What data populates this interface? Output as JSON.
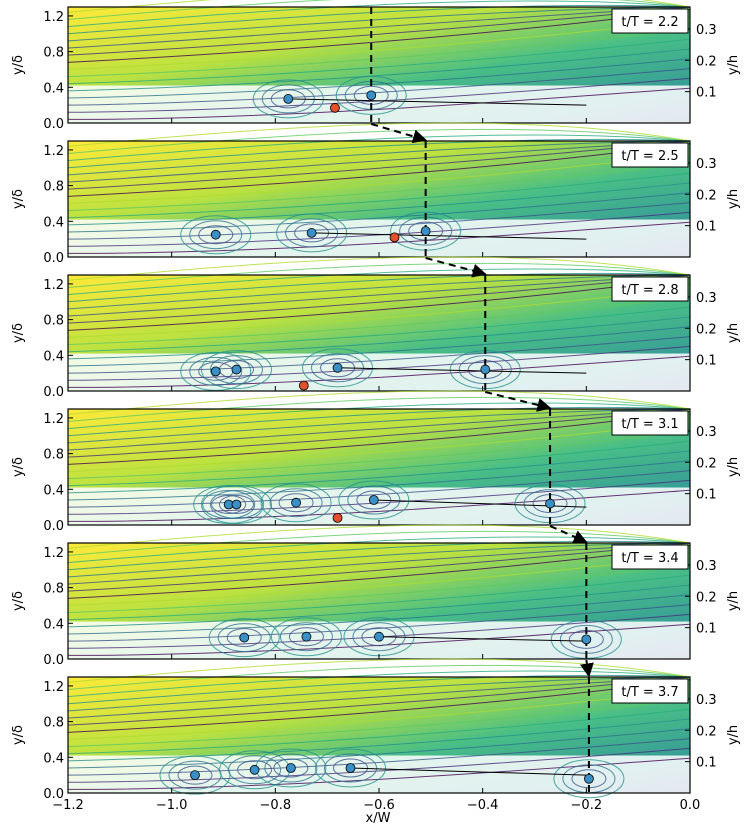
{
  "chart_data": {
    "type": "streamline-panels",
    "xlabel": "x/W",
    "ylabel_left": "y/δ",
    "ylabel_right": "y/h",
    "xlim": [
      -1.2,
      0.0
    ],
    "ylim_left": [
      0.0,
      1.3
    ],
    "ylim_right": [
      0.0,
      0.37
    ],
    "x_ticks": [
      "−1.2",
      "−1.0",
      "−0.8",
      "−0.6",
      "−0.4",
      "−0.2",
      "0.0"
    ],
    "x_tick_values": [
      -1.2,
      -1.0,
      -0.8,
      -0.6,
      -0.4,
      -0.2,
      0.0
    ],
    "y_ticks_left": [
      "0.0",
      "0.4",
      "0.8",
      "1.2"
    ],
    "y_tick_values_left": [
      0.0,
      0.4,
      0.8,
      1.2
    ],
    "y_ticks_right": [
      "0.1",
      "0.2",
      "0.3"
    ],
    "y_tick_values_right": [
      0.1,
      0.2,
      0.3
    ],
    "colors": {
      "vortex_core": "#3b8fc7",
      "saddle_point": "#e0502a",
      "field_high": "#fde725",
      "field_mid": "#35b779",
      "field_low": "#440154"
    },
    "panels": [
      {
        "time_label": "t/T = 2.2",
        "tracked_x": -0.615,
        "vortices": [
          {
            "x": -0.775,
            "y": 0.27
          },
          {
            "x": -0.615,
            "y": 0.31
          }
        ],
        "saddles": [
          {
            "x": -0.685,
            "y": 0.17
          }
        ]
      },
      {
        "time_label": "t/T = 2.5",
        "tracked_x": -0.51,
        "vortices": [
          {
            "x": -0.915,
            "y": 0.25
          },
          {
            "x": -0.73,
            "y": 0.27
          },
          {
            "x": -0.51,
            "y": 0.29
          }
        ],
        "saddles": [
          {
            "x": -0.57,
            "y": 0.22
          }
        ]
      },
      {
        "time_label": "t/T = 2.8",
        "tracked_x": -0.395,
        "vortices": [
          {
            "x": -0.915,
            "y": 0.22
          },
          {
            "x": -0.875,
            "y": 0.24
          },
          {
            "x": -0.68,
            "y": 0.26
          },
          {
            "x": -0.395,
            "y": 0.24
          }
        ],
        "saddles": [
          {
            "x": -0.745,
            "y": 0.06
          }
        ]
      },
      {
        "time_label": "t/T = 3.1",
        "tracked_x": -0.27,
        "vortices": [
          {
            "x": -0.89,
            "y": 0.23
          },
          {
            "x": -0.875,
            "y": 0.23
          },
          {
            "x": -0.76,
            "y": 0.25
          },
          {
            "x": -0.61,
            "y": 0.28
          },
          {
            "x": -0.27,
            "y": 0.24
          }
        ],
        "saddles": [
          {
            "x": -0.68,
            "y": 0.08
          }
        ]
      },
      {
        "time_label": "t/T = 3.4",
        "tracked_x": -0.2,
        "vortices": [
          {
            "x": -0.86,
            "y": 0.24
          },
          {
            "x": -0.74,
            "y": 0.25
          },
          {
            "x": -0.6,
            "y": 0.25
          },
          {
            "x": -0.2,
            "y": 0.22
          }
        ],
        "saddles": []
      },
      {
        "time_label": "t/T = 3.7",
        "tracked_x": -0.195,
        "vortices": [
          {
            "x": -0.955,
            "y": 0.2
          },
          {
            "x": -0.84,
            "y": 0.26
          },
          {
            "x": -0.77,
            "y": 0.28
          },
          {
            "x": -0.655,
            "y": 0.28
          },
          {
            "x": -0.195,
            "y": 0.16
          }
        ],
        "saddles": []
      }
    ]
  }
}
